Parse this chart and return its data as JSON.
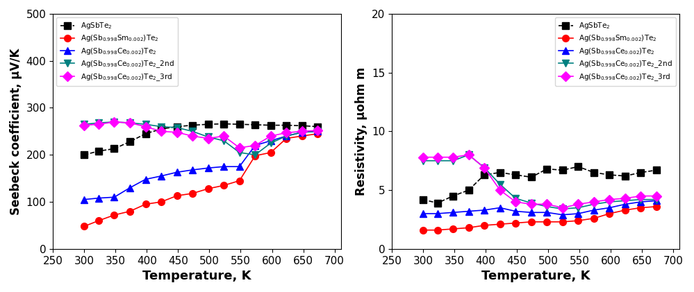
{
  "seebeck": {
    "temp": [
      300,
      323,
      348,
      373,
      398,
      423,
      448,
      473,
      498,
      523,
      548,
      573,
      598,
      623,
      648,
      673
    ],
    "AgSbTe2": [
      200,
      208,
      213,
      228,
      245,
      255,
      260,
      263,
      265,
      266,
      265,
      264,
      263,
      263,
      262,
      260
    ],
    "Sm": [
      48,
      60,
      72,
      80,
      95,
      100,
      113,
      118,
      128,
      135,
      145,
      198,
      205,
      235,
      240,
      245
    ],
    "Ce": [
      105,
      108,
      110,
      130,
      148,
      155,
      163,
      168,
      172,
      175,
      175,
      220,
      230,
      240,
      248,
      250
    ],
    "Ce_2nd": [
      265,
      268,
      270,
      268,
      265,
      260,
      258,
      250,
      238,
      230,
      205,
      200,
      225,
      240,
      248,
      250
    ],
    "Ce_3rd": [
      263,
      265,
      270,
      268,
      260,
      250,
      248,
      240,
      235,
      240,
      215,
      220,
      240,
      247,
      250,
      252
    ]
  },
  "resistivity": {
    "temp": [
      300,
      323,
      348,
      373,
      398,
      423,
      448,
      473,
      498,
      523,
      548,
      573,
      598,
      623,
      648,
      673
    ],
    "AgSbTe2": [
      4.2,
      3.9,
      4.5,
      5.0,
      6.3,
      6.5,
      6.3,
      6.1,
      6.8,
      6.7,
      7.0,
      6.5,
      6.3,
      6.2,
      6.5,
      6.7
    ],
    "Sm": [
      1.6,
      1.6,
      1.7,
      1.8,
      2.0,
      2.1,
      2.2,
      2.3,
      2.3,
      2.3,
      2.4,
      2.6,
      3.0,
      3.3,
      3.5,
      3.6
    ],
    "Ce": [
      3.0,
      3.0,
      3.1,
      3.2,
      3.3,
      3.5,
      3.2,
      3.1,
      3.1,
      2.9,
      3.0,
      3.3,
      3.5,
      3.8,
      4.0,
      4.1
    ],
    "Ce_2nd": [
      7.5,
      7.5,
      7.5,
      8.0,
      6.9,
      5.5,
      4.3,
      3.9,
      3.6,
      3.4,
      3.5,
      3.8,
      4.0,
      4.1,
      4.2,
      4.2
    ],
    "Ce_3rd": [
      7.8,
      7.8,
      7.8,
      8.0,
      6.9,
      5.0,
      4.0,
      3.8,
      3.8,
      3.5,
      3.8,
      4.0,
      4.2,
      4.3,
      4.5,
      4.5
    ]
  },
  "colors": {
    "AgSbTe2": "#000000",
    "Sm": "#ff0000",
    "Ce": "#0000ff",
    "Ce_2nd": "#008080",
    "Ce_3rd": "#ff00ff"
  },
  "legend_labels": {
    "AgSbTe2": "AgSbTe$_2$",
    "Sm": "Ag(Sb$_{0.998}$Sm$_{0.002}$)Te$_2$",
    "Ce": "Ag(Sb$_{0.998}$Ce$_{0.002}$)Te$_2$",
    "Ce_2nd": "Ag(Sb$_{0.998}$Ce$_{0.002}$)Te$_2$_2nd",
    "Ce_3rd": "Ag(Sb$_{0.998}$Ce$_{0.002}$)Te$_2$_3rd"
  },
  "markers": {
    "AgSbTe2": "s",
    "Sm": "o",
    "Ce": "^",
    "Ce_2nd": "v",
    "Ce_3rd": "D"
  },
  "linestyles": {
    "AgSbTe2": "--",
    "Sm": "-",
    "Ce": "-",
    "Ce_2nd": "-",
    "Ce_3rd": "-"
  },
  "seebeck_ylabel": "Seebeck coefficient, μV/K",
  "resistivity_ylabel": "Resistivity, μohm m",
  "xlabel": "Temperature, K",
  "seebeck_ylim": [
    0,
    500
  ],
  "resistivity_ylim": [
    0,
    20
  ],
  "xlim": [
    260,
    710
  ],
  "xticks": [
    250,
    300,
    350,
    400,
    450,
    500,
    550,
    600,
    650,
    700
  ],
  "seebeck_yticks": [
    0,
    100,
    200,
    300,
    400,
    500
  ],
  "resistivity_yticks": [
    0,
    5,
    10,
    15,
    20
  ]
}
